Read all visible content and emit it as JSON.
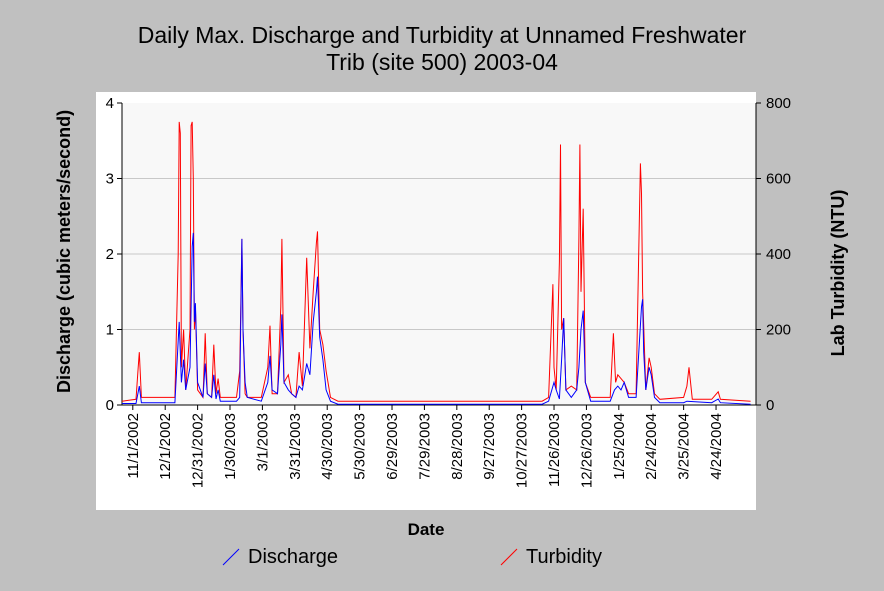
{
  "chart_data": {
    "type": "line",
    "title_lines": [
      "Daily Max. Discharge and Turbidity at Unnamed Freshwater",
      "Trib (site 500) 2003-04"
    ],
    "xlabel": "Date",
    "ylabel_left": "Discharge (cubic meters/second)",
    "ylabel_right": "Lab Turbidity (NTU)",
    "y_left_lim": [
      0,
      4
    ],
    "y_left_ticks": [
      "0",
      "1",
      "2",
      "3",
      "4"
    ],
    "y_right_lim": [
      0,
      800
    ],
    "y_right_ticks": [
      "0",
      "200",
      "400",
      "600",
      "800"
    ],
    "x_range": [
      "2002-10-22",
      "2004-05-31"
    ],
    "x_ticks": [
      "11/1/2002",
      "12/1/2002",
      "12/31/2002",
      "1/30/2003",
      "3/1/2003",
      "3/31/2003",
      "4/30/2003",
      "5/30/2003",
      "6/29/2003",
      "7/29/2003",
      "8/28/2003",
      "9/27/2003",
      "10/27/2003",
      "11/26/2003",
      "12/26/2003",
      "1/25/2004",
      "2/24/2004",
      "3/25/2004",
      "4/24/2004"
    ],
    "grid": "horizontal",
    "legend_position": "bottom",
    "colors": {
      "Discharge": "#0000ff",
      "Turbidity": "#ff0000"
    },
    "series": [
      {
        "name": "Discharge",
        "axis": "left",
        "points": [
          [
            "2002-10-22",
            0.02
          ],
          [
            "2002-11-04",
            0.02
          ],
          [
            "2002-11-07",
            0.25
          ],
          [
            "2002-11-09",
            0.03
          ],
          [
            "2002-12-10",
            0.03
          ],
          [
            "2002-12-14",
            1.1
          ],
          [
            "2002-12-16",
            0.3
          ],
          [
            "2002-12-18",
            0.6
          ],
          [
            "2002-12-20",
            0.2
          ],
          [
            "2002-12-24",
            0.5
          ],
          [
            "2002-12-26",
            2.1
          ],
          [
            "2002-12-27",
            2.28
          ],
          [
            "2002-12-28",
            1.1
          ],
          [
            "2002-12-29",
            1.35
          ],
          [
            "2002-12-31",
            0.3
          ],
          [
            "2003-01-05",
            0.1
          ],
          [
            "2003-01-07",
            0.55
          ],
          [
            "2003-01-09",
            0.15
          ],
          [
            "2003-01-13",
            0.1
          ],
          [
            "2003-01-15",
            0.4
          ],
          [
            "2003-01-17",
            0.08
          ],
          [
            "2003-01-19",
            0.2
          ],
          [
            "2003-01-21",
            0.05
          ],
          [
            "2003-02-05",
            0.05
          ],
          [
            "2003-02-08",
            0.1
          ],
          [
            "2003-02-10",
            2.2
          ],
          [
            "2003-02-11",
            1.0
          ],
          [
            "2003-02-13",
            0.3
          ],
          [
            "2003-02-15",
            0.1
          ],
          [
            "2003-02-28",
            0.05
          ],
          [
            "2003-03-06",
            0.3
          ],
          [
            "2003-03-08",
            0.65
          ],
          [
            "2003-03-10",
            0.2
          ],
          [
            "2003-03-15",
            0.15
          ],
          [
            "2003-03-18",
            0.8
          ],
          [
            "2003-03-19",
            1.2
          ],
          [
            "2003-03-21",
            0.3
          ],
          [
            "2003-03-25",
            0.2
          ],
          [
            "2003-03-28",
            0.15
          ],
          [
            "2003-04-01",
            0.1
          ],
          [
            "2003-04-04",
            0.25
          ],
          [
            "2003-04-07",
            0.2
          ],
          [
            "2003-04-11",
            0.55
          ],
          [
            "2003-04-14",
            0.4
          ],
          [
            "2003-04-17",
            1.1
          ],
          [
            "2003-04-20",
            1.5
          ],
          [
            "2003-04-21",
            1.7
          ],
          [
            "2003-04-23",
            0.9
          ],
          [
            "2003-04-26",
            0.6
          ],
          [
            "2003-04-29",
            0.2
          ],
          [
            "2003-05-03",
            0.05
          ],
          [
            "2003-05-10",
            0.01
          ],
          [
            "2003-11-15",
            0.01
          ],
          [
            "2003-11-21",
            0.05
          ],
          [
            "2003-11-26",
            0.3
          ],
          [
            "2003-11-28",
            0.2
          ],
          [
            "2003-12-01",
            0.08
          ],
          [
            "2003-12-03",
            0.6
          ],
          [
            "2003-12-05",
            1.15
          ],
          [
            "2003-12-07",
            0.2
          ],
          [
            "2003-12-12",
            0.1
          ],
          [
            "2003-12-17",
            0.2
          ],
          [
            "2003-12-19",
            0.5
          ],
          [
            "2003-12-21",
            1.0
          ],
          [
            "2003-12-23",
            1.25
          ],
          [
            "2003-12-25",
            0.3
          ],
          [
            "2003-12-30",
            0.05
          ],
          [
            "2004-01-17",
            0.05
          ],
          [
            "2004-01-21",
            0.2
          ],
          [
            "2004-01-24",
            0.25
          ],
          [
            "2004-01-27",
            0.2
          ],
          [
            "2004-01-30",
            0.3
          ],
          [
            "2004-02-03",
            0.1
          ],
          [
            "2004-02-10",
            0.1
          ],
          [
            "2004-02-15",
            1.3
          ],
          [
            "2004-02-16",
            1.4
          ],
          [
            "2004-02-17",
            0.7
          ],
          [
            "2004-02-19",
            0.2
          ],
          [
            "2004-02-22",
            0.5
          ],
          [
            "2004-02-24",
            0.4
          ],
          [
            "2004-02-27",
            0.1
          ],
          [
            "2004-03-03",
            0.03
          ],
          [
            "2004-03-25",
            0.03
          ],
          [
            "2004-03-28",
            0.05
          ],
          [
            "2004-04-20",
            0.03
          ],
          [
            "2004-04-26",
            0.08
          ],
          [
            "2004-04-28",
            0.03
          ],
          [
            "2004-05-26",
            0.01
          ]
        ]
      },
      {
        "name": "Turbidity",
        "axis": "right",
        "points": [
          [
            "2002-10-22",
            10
          ],
          [
            "2002-11-04",
            15
          ],
          [
            "2002-11-06",
            100
          ],
          [
            "2002-11-07",
            140
          ],
          [
            "2002-11-09",
            20
          ],
          [
            "2002-12-10",
            20
          ],
          [
            "2002-12-13",
            400
          ],
          [
            "2002-12-14",
            750
          ],
          [
            "2002-12-15",
            720
          ],
          [
            "2002-12-16",
            100
          ],
          [
            "2002-12-18",
            200
          ],
          [
            "2002-12-20",
            40
          ],
          [
            "2002-12-24",
            200
          ],
          [
            "2002-12-25",
            740
          ],
          [
            "2002-12-26",
            750
          ],
          [
            "2002-12-27",
            600
          ],
          [
            "2002-12-28",
            200
          ],
          [
            "2002-12-29",
            260
          ],
          [
            "2002-12-31",
            40
          ],
          [
            "2003-01-05",
            20
          ],
          [
            "2003-01-06",
            100
          ],
          [
            "2003-01-07",
            190
          ],
          [
            "2003-01-09",
            30
          ],
          [
            "2003-01-13",
            20
          ],
          [
            "2003-01-15",
            160
          ],
          [
            "2003-01-17",
            30
          ],
          [
            "2003-01-19",
            70
          ],
          [
            "2003-01-21",
            20
          ],
          [
            "2003-02-05",
            20
          ],
          [
            "2003-02-08",
            90
          ],
          [
            "2003-02-10",
            440
          ],
          [
            "2003-02-11",
            200
          ],
          [
            "2003-02-13",
            30
          ],
          [
            "2003-02-15",
            20
          ],
          [
            "2003-02-28",
            20
          ],
          [
            "2003-03-06",
            100
          ],
          [
            "2003-03-08",
            210
          ],
          [
            "2003-03-10",
            30
          ],
          [
            "2003-03-15",
            30
          ],
          [
            "2003-03-18",
            260
          ],
          [
            "2003-03-19",
            440
          ],
          [
            "2003-03-21",
            60
          ],
          [
            "2003-03-25",
            80
          ],
          [
            "2003-03-28",
            30
          ],
          [
            "2003-04-01",
            20
          ],
          [
            "2003-04-04",
            140
          ],
          [
            "2003-04-07",
            50
          ],
          [
            "2003-04-11",
            390
          ],
          [
            "2003-04-14",
            150
          ],
          [
            "2003-04-17",
            300
          ],
          [
            "2003-04-20",
            430
          ],
          [
            "2003-04-21",
            460
          ],
          [
            "2003-04-23",
            200
          ],
          [
            "2003-04-26",
            160
          ],
          [
            "2003-04-29",
            90
          ],
          [
            "2003-05-03",
            20
          ],
          [
            "2003-05-10",
            10
          ],
          [
            "2003-11-15",
            10
          ],
          [
            "2003-11-21",
            20
          ],
          [
            "2003-11-25",
            320
          ],
          [
            "2003-11-26",
            100
          ],
          [
            "2003-11-28",
            40
          ],
          [
            "2003-12-01",
            380
          ],
          [
            "2003-12-02",
            690
          ],
          [
            "2003-12-03",
            200
          ],
          [
            "2003-12-05",
            230
          ],
          [
            "2003-12-07",
            40
          ],
          [
            "2003-12-12",
            50
          ],
          [
            "2003-12-17",
            40
          ],
          [
            "2003-12-19",
            440
          ],
          [
            "2003-12-20",
            690
          ],
          [
            "2003-12-21",
            300
          ],
          [
            "2003-12-23",
            520
          ],
          [
            "2003-12-25",
            60
          ],
          [
            "2003-12-30",
            20
          ],
          [
            "2004-01-17",
            20
          ],
          [
            "2004-01-20",
            190
          ],
          [
            "2004-01-22",
            60
          ],
          [
            "2004-01-24",
            80
          ],
          [
            "2004-01-27",
            70
          ],
          [
            "2004-01-30",
            60
          ],
          [
            "2004-02-03",
            30
          ],
          [
            "2004-02-10",
            30
          ],
          [
            "2004-02-14",
            640
          ],
          [
            "2004-02-15",
            560
          ],
          [
            "2004-02-16",
            300
          ],
          [
            "2004-02-19",
            40
          ],
          [
            "2004-02-22",
            125
          ],
          [
            "2004-02-24",
            100
          ],
          [
            "2004-02-27",
            30
          ],
          [
            "2004-03-03",
            15
          ],
          [
            "2004-03-25",
            20
          ],
          [
            "2004-03-28",
            50
          ],
          [
            "2004-03-30",
            100
          ],
          [
            "2004-04-02",
            15
          ],
          [
            "2004-04-20",
            15
          ],
          [
            "2004-04-26",
            35
          ],
          [
            "2004-04-28",
            15
          ],
          [
            "2004-05-26",
            10
          ]
        ]
      }
    ]
  }
}
